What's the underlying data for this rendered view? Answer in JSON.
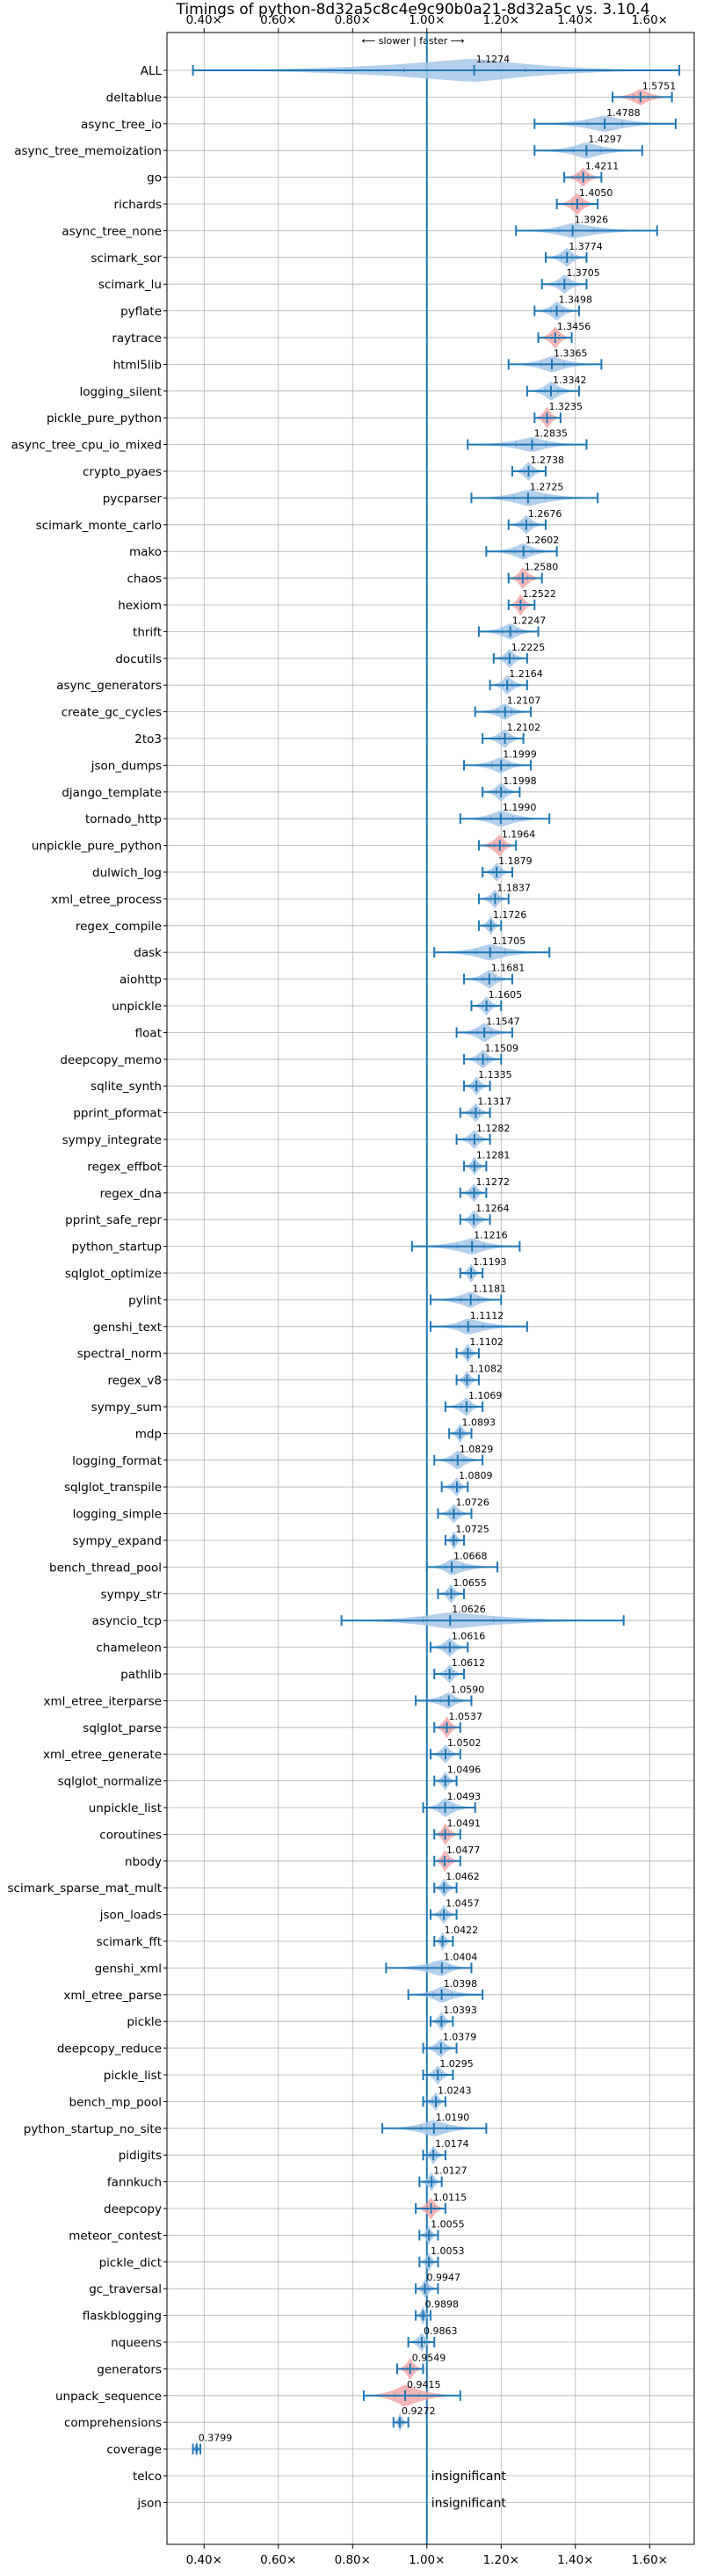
{
  "chart_data": {
    "type": "violin",
    "title": "Timings of python-8d32a5c8c4e9c90b0a21-8d32a5c vs. 3.10.4",
    "direction_note": "⟵ slower  |  faster ⟶",
    "xticks": [
      "0.40×",
      "0.60×",
      "0.80×",
      "1.00×",
      "1.20×",
      "1.40×",
      "1.60×"
    ],
    "xtick_values": [
      0.4,
      0.6,
      0.8,
      1.0,
      1.2,
      1.4,
      1.6
    ],
    "xlim": [
      0.3,
      1.72
    ],
    "grid": true,
    "insignificant_label": "insignificant",
    "colors": {
      "faster": "#a7c7e7",
      "slower": "#f4a7a7",
      "stroke": "#1f77b4"
    },
    "rows": [
      {
        "name": "ALL",
        "median": 1.1274,
        "lo": 0.37,
        "hi": 1.68,
        "w": 0.85,
        "status": "faster"
      },
      {
        "name": "deltablue",
        "median": 1.5751,
        "lo": 1.5,
        "hi": 1.66,
        "w": 0.6,
        "status": "slower"
      },
      {
        "name": "async_tree_io",
        "median": 1.4788,
        "lo": 1.29,
        "hi": 1.67,
        "w": 0.6,
        "status": "faster"
      },
      {
        "name": "async_tree_memoization",
        "median": 1.4297,
        "lo": 1.29,
        "hi": 1.58,
        "w": 0.6,
        "status": "faster"
      },
      {
        "name": "go",
        "median": 1.4211,
        "lo": 1.37,
        "hi": 1.47,
        "w": 0.7,
        "status": "slower"
      },
      {
        "name": "richards",
        "median": 1.405,
        "lo": 1.35,
        "hi": 1.46,
        "w": 0.8,
        "status": "slower"
      },
      {
        "name": "async_tree_none",
        "median": 1.3926,
        "lo": 1.24,
        "hi": 1.62,
        "w": 0.55,
        "status": "faster"
      },
      {
        "name": "scimark_sor",
        "median": 1.3774,
        "lo": 1.32,
        "hi": 1.43,
        "w": 0.7,
        "status": "faster"
      },
      {
        "name": "scimark_lu",
        "median": 1.3705,
        "lo": 1.31,
        "hi": 1.43,
        "w": 0.7,
        "status": "faster"
      },
      {
        "name": "pyflate",
        "median": 1.3498,
        "lo": 1.29,
        "hi": 1.41,
        "w": 0.7,
        "status": "faster"
      },
      {
        "name": "raytrace",
        "median": 1.3456,
        "lo": 1.3,
        "hi": 1.39,
        "w": 0.8,
        "status": "slower"
      },
      {
        "name": "html5lib",
        "median": 1.3365,
        "lo": 1.22,
        "hi": 1.47,
        "w": 0.6,
        "status": "faster"
      },
      {
        "name": "logging_silent",
        "median": 1.3342,
        "lo": 1.27,
        "hi": 1.41,
        "w": 0.7,
        "status": "faster"
      },
      {
        "name": "pickle_pure_python",
        "median": 1.3235,
        "lo": 1.29,
        "hi": 1.36,
        "w": 0.8,
        "status": "slower"
      },
      {
        "name": "async_tree_cpu_io_mixed",
        "median": 1.2835,
        "lo": 1.11,
        "hi": 1.43,
        "w": 0.55,
        "status": "faster"
      },
      {
        "name": "crypto_pyaes",
        "median": 1.2738,
        "lo": 1.23,
        "hi": 1.32,
        "w": 0.7,
        "status": "faster"
      },
      {
        "name": "pycparser",
        "median": 1.2725,
        "lo": 1.12,
        "hi": 1.46,
        "w": 0.6,
        "status": "faster"
      },
      {
        "name": "scimark_monte_carlo",
        "median": 1.2676,
        "lo": 1.22,
        "hi": 1.32,
        "w": 0.7,
        "status": "faster"
      },
      {
        "name": "mako",
        "median": 1.2602,
        "lo": 1.16,
        "hi": 1.35,
        "w": 0.6,
        "status": "faster"
      },
      {
        "name": "chaos",
        "median": 1.258,
        "lo": 1.22,
        "hi": 1.31,
        "w": 0.8,
        "status": "slower"
      },
      {
        "name": "hexiom",
        "median": 1.2522,
        "lo": 1.22,
        "hi": 1.29,
        "w": 0.8,
        "status": "slower"
      },
      {
        "name": "thrift",
        "median": 1.2247,
        "lo": 1.14,
        "hi": 1.3,
        "w": 0.6,
        "status": "faster"
      },
      {
        "name": "docutils",
        "median": 1.2225,
        "lo": 1.18,
        "hi": 1.27,
        "w": 0.7,
        "status": "faster"
      },
      {
        "name": "async_generators",
        "median": 1.2164,
        "lo": 1.17,
        "hi": 1.27,
        "w": 0.7,
        "status": "faster"
      },
      {
        "name": "create_gc_cycles",
        "median": 1.2107,
        "lo": 1.13,
        "hi": 1.28,
        "w": 0.6,
        "status": "faster"
      },
      {
        "name": "2to3",
        "median": 1.2102,
        "lo": 1.15,
        "hi": 1.26,
        "w": 0.7,
        "status": "faster"
      },
      {
        "name": "json_dumps",
        "median": 1.1999,
        "lo": 1.1,
        "hi": 1.28,
        "w": 0.6,
        "status": "faster"
      },
      {
        "name": "django_template",
        "median": 1.1998,
        "lo": 1.15,
        "hi": 1.25,
        "w": 0.7,
        "status": "faster"
      },
      {
        "name": "tornado_http",
        "median": 1.199,
        "lo": 1.09,
        "hi": 1.33,
        "w": 0.6,
        "status": "faster"
      },
      {
        "name": "unpickle_pure_python",
        "median": 1.1964,
        "lo": 1.14,
        "hi": 1.24,
        "w": 0.8,
        "status": "slower"
      },
      {
        "name": "dulwich_log",
        "median": 1.1879,
        "lo": 1.15,
        "hi": 1.23,
        "w": 0.7,
        "status": "faster"
      },
      {
        "name": "xml_etree_process",
        "median": 1.1837,
        "lo": 1.14,
        "hi": 1.22,
        "w": 0.7,
        "status": "faster"
      },
      {
        "name": "regex_compile",
        "median": 1.1726,
        "lo": 1.14,
        "hi": 1.2,
        "w": 0.7,
        "status": "faster"
      },
      {
        "name": "dask",
        "median": 1.1705,
        "lo": 1.02,
        "hi": 1.33,
        "w": 0.6,
        "status": "faster"
      },
      {
        "name": "aiohttp",
        "median": 1.1681,
        "lo": 1.1,
        "hi": 1.23,
        "w": 0.7,
        "status": "faster"
      },
      {
        "name": "unpickle",
        "median": 1.1605,
        "lo": 1.12,
        "hi": 1.2,
        "w": 0.7,
        "status": "faster"
      },
      {
        "name": "float",
        "median": 1.1547,
        "lo": 1.08,
        "hi": 1.23,
        "w": 0.7,
        "status": "faster"
      },
      {
        "name": "deepcopy_memo",
        "median": 1.1509,
        "lo": 1.1,
        "hi": 1.2,
        "w": 0.7,
        "status": "faster"
      },
      {
        "name": "sqlite_synth",
        "median": 1.1335,
        "lo": 1.1,
        "hi": 1.17,
        "w": 0.7,
        "status": "faster"
      },
      {
        "name": "pprint_pformat",
        "median": 1.1317,
        "lo": 1.09,
        "hi": 1.17,
        "w": 0.7,
        "status": "faster"
      },
      {
        "name": "sympy_integrate",
        "median": 1.1282,
        "lo": 1.08,
        "hi": 1.17,
        "w": 0.7,
        "status": "faster"
      },
      {
        "name": "regex_effbot",
        "median": 1.1281,
        "lo": 1.1,
        "hi": 1.16,
        "w": 0.7,
        "status": "faster"
      },
      {
        "name": "regex_dna",
        "median": 1.1272,
        "lo": 1.09,
        "hi": 1.16,
        "w": 0.7,
        "status": "faster"
      },
      {
        "name": "pprint_safe_repr",
        "median": 1.1264,
        "lo": 1.09,
        "hi": 1.17,
        "w": 0.7,
        "status": "faster"
      },
      {
        "name": "python_startup",
        "median": 1.1216,
        "lo": 0.96,
        "hi": 1.25,
        "w": 0.6,
        "status": "faster"
      },
      {
        "name": "sqlglot_optimize",
        "median": 1.1193,
        "lo": 1.09,
        "hi": 1.15,
        "w": 0.7,
        "status": "faster"
      },
      {
        "name": "pylint",
        "median": 1.1181,
        "lo": 1.01,
        "hi": 1.2,
        "w": 0.6,
        "status": "faster"
      },
      {
        "name": "genshi_text",
        "median": 1.1112,
        "lo": 1.01,
        "hi": 1.27,
        "w": 0.6,
        "status": "faster"
      },
      {
        "name": "spectral_norm",
        "median": 1.1102,
        "lo": 1.08,
        "hi": 1.14,
        "w": 0.7,
        "status": "faster"
      },
      {
        "name": "regex_v8",
        "median": 1.1082,
        "lo": 1.08,
        "hi": 1.14,
        "w": 0.7,
        "status": "faster"
      },
      {
        "name": "sympy_sum",
        "median": 1.1069,
        "lo": 1.05,
        "hi": 1.15,
        "w": 0.7,
        "status": "faster"
      },
      {
        "name": "mdp",
        "median": 1.0893,
        "lo": 1.06,
        "hi": 1.12,
        "w": 0.7,
        "status": "faster"
      },
      {
        "name": "logging_format",
        "median": 1.0829,
        "lo": 1.02,
        "hi": 1.15,
        "w": 0.7,
        "status": "faster"
      },
      {
        "name": "sqlglot_transpile",
        "median": 1.0809,
        "lo": 1.04,
        "hi": 1.11,
        "w": 0.7,
        "status": "faster"
      },
      {
        "name": "logging_simple",
        "median": 1.0726,
        "lo": 1.03,
        "hi": 1.12,
        "w": 0.7,
        "status": "faster"
      },
      {
        "name": "sympy_expand",
        "median": 1.0725,
        "lo": 1.05,
        "hi": 1.1,
        "w": 0.7,
        "status": "faster"
      },
      {
        "name": "bench_thread_pool",
        "median": 1.0668,
        "lo": 1.0,
        "hi": 1.19,
        "w": 0.6,
        "status": "faster"
      },
      {
        "name": "sympy_str",
        "median": 1.0655,
        "lo": 1.03,
        "hi": 1.1,
        "w": 0.7,
        "status": "faster"
      },
      {
        "name": "asyncio_tcp",
        "median": 1.0626,
        "lo": 0.77,
        "hi": 1.53,
        "w": 0.6,
        "status": "faster"
      },
      {
        "name": "chameleon",
        "median": 1.0616,
        "lo": 1.01,
        "hi": 1.11,
        "w": 0.7,
        "status": "faster"
      },
      {
        "name": "pathlib",
        "median": 1.0612,
        "lo": 1.02,
        "hi": 1.1,
        "w": 0.7,
        "status": "faster"
      },
      {
        "name": "xml_etree_iterparse",
        "median": 1.059,
        "lo": 0.97,
        "hi": 1.12,
        "w": 0.6,
        "status": "faster"
      },
      {
        "name": "sqlglot_parse",
        "median": 1.0537,
        "lo": 1.02,
        "hi": 1.09,
        "w": 0.8,
        "status": "slower"
      },
      {
        "name": "xml_etree_generate",
        "median": 1.0502,
        "lo": 1.01,
        "hi": 1.09,
        "w": 0.7,
        "status": "faster"
      },
      {
        "name": "sqlglot_normalize",
        "median": 1.0496,
        "lo": 1.02,
        "hi": 1.08,
        "w": 0.7,
        "status": "faster"
      },
      {
        "name": "unpickle_list",
        "median": 1.0493,
        "lo": 0.99,
        "hi": 1.13,
        "w": 0.7,
        "status": "faster"
      },
      {
        "name": "coroutines",
        "median": 1.0491,
        "lo": 1.02,
        "hi": 1.09,
        "w": 0.8,
        "status": "slower"
      },
      {
        "name": "nbody",
        "median": 1.0477,
        "lo": 1.02,
        "hi": 1.09,
        "w": 0.8,
        "status": "slower"
      },
      {
        "name": "scimark_sparse_mat_mult",
        "median": 1.0462,
        "lo": 1.02,
        "hi": 1.08,
        "w": 0.7,
        "status": "faster"
      },
      {
        "name": "json_loads",
        "median": 1.0457,
        "lo": 1.01,
        "hi": 1.08,
        "w": 0.7,
        "status": "faster"
      },
      {
        "name": "scimark_fft",
        "median": 1.0422,
        "lo": 1.02,
        "hi": 1.07,
        "w": 0.7,
        "status": "faster"
      },
      {
        "name": "genshi_xml",
        "median": 1.0404,
        "lo": 0.89,
        "hi": 1.12,
        "w": 0.6,
        "status": "faster"
      },
      {
        "name": "xml_etree_parse",
        "median": 1.0398,
        "lo": 0.95,
        "hi": 1.15,
        "w": 0.6,
        "status": "faster"
      },
      {
        "name": "pickle",
        "median": 1.0393,
        "lo": 1.01,
        "hi": 1.07,
        "w": 0.7,
        "status": "faster"
      },
      {
        "name": "deepcopy_reduce",
        "median": 1.0379,
        "lo": 0.99,
        "hi": 1.08,
        "w": 0.7,
        "status": "faster"
      },
      {
        "name": "pickle_list",
        "median": 1.0295,
        "lo": 0.99,
        "hi": 1.07,
        "w": 0.7,
        "status": "faster"
      },
      {
        "name": "bench_mp_pool",
        "median": 1.0243,
        "lo": 0.99,
        "hi": 1.05,
        "w": 0.7,
        "status": "faster"
      },
      {
        "name": "python_startup_no_site",
        "median": 1.019,
        "lo": 0.88,
        "hi": 1.16,
        "w": 0.6,
        "status": "faster"
      },
      {
        "name": "pidigits",
        "median": 1.0174,
        "lo": 0.99,
        "hi": 1.05,
        "w": 0.7,
        "status": "faster"
      },
      {
        "name": "fannkuch",
        "median": 1.0127,
        "lo": 0.98,
        "hi": 1.04,
        "w": 0.7,
        "status": "faster"
      },
      {
        "name": "deepcopy",
        "median": 1.0115,
        "lo": 0.97,
        "hi": 1.05,
        "w": 0.8,
        "status": "slower"
      },
      {
        "name": "meteor_contest",
        "median": 1.0055,
        "lo": 0.98,
        "hi": 1.03,
        "w": 0.7,
        "status": "faster"
      },
      {
        "name": "pickle_dict",
        "median": 1.0053,
        "lo": 0.98,
        "hi": 1.03,
        "w": 0.7,
        "status": "faster"
      },
      {
        "name": "gc_traversal",
        "median": 0.9947,
        "lo": 0.97,
        "hi": 1.03,
        "w": 0.7,
        "status": "faster"
      },
      {
        "name": "flaskblogging",
        "median": 0.9898,
        "lo": 0.97,
        "hi": 1.01,
        "w": 0.7,
        "status": "faster"
      },
      {
        "name": "nqueens",
        "median": 0.9863,
        "lo": 0.95,
        "hi": 1.02,
        "w": 0.7,
        "status": "faster"
      },
      {
        "name": "generators",
        "median": 0.9549,
        "lo": 0.92,
        "hi": 0.99,
        "w": 0.8,
        "status": "slower"
      },
      {
        "name": "unpack_sequence",
        "median": 0.9415,
        "lo": 0.83,
        "hi": 1.09,
        "w": 0.8,
        "status": "slower"
      },
      {
        "name": "comprehensions",
        "median": 0.9272,
        "lo": 0.91,
        "hi": 0.95,
        "w": 0.7,
        "status": "faster"
      },
      {
        "name": "coverage",
        "median": 0.3799,
        "lo": 0.37,
        "hi": 0.39,
        "w": 0.6,
        "status": "faster"
      },
      {
        "name": "telco",
        "median": null,
        "status": "insignificant"
      },
      {
        "name": "json",
        "median": null,
        "status": "insignificant"
      }
    ]
  }
}
